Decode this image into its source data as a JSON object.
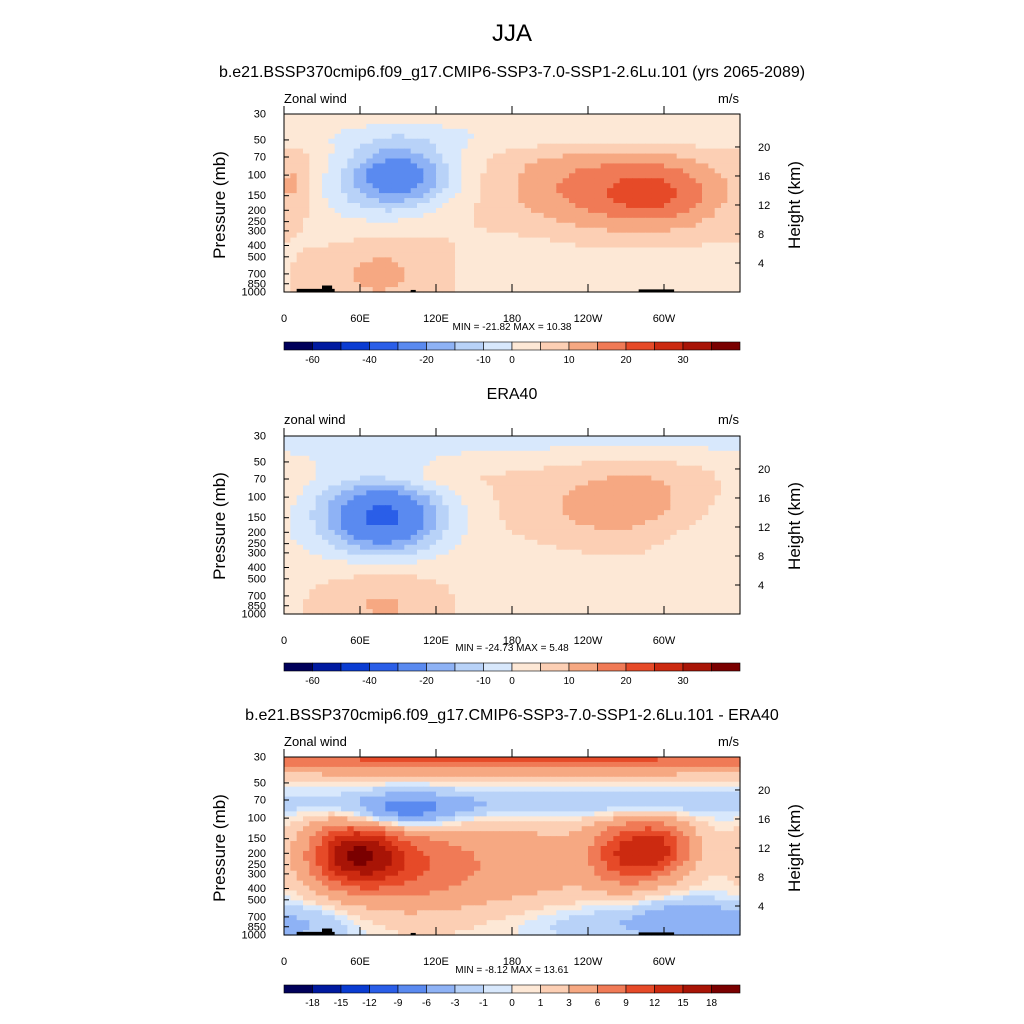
{
  "page": {
    "title": "JJA",
    "subtitle_model": "b.e21.BSSP370cmip6.f09_g17.CMIP6-SSP3-7.0-SSP1-2.6Lu.101 (yrs 2065-2089)",
    "subtitle_obs": "ERA40",
    "subtitle_diff": "b.e21.BSSP370cmip6.f09_g17.CMIP6-SSP3-7.0-SSP1-2.6Lu.101 - ERA40"
  },
  "panels": [
    {
      "left_label": "Zonal wind",
      "right_label": "m/s",
      "minmax": "MIN = -21.82  MAX =  10.38"
    },
    {
      "left_label": "zonal wind",
      "right_label": "m/s",
      "minmax": "MIN = -24.73  MAX =   5.48"
    },
    {
      "left_label": "Zonal wind",
      "right_label": "m/s",
      "minmax": "MIN = -8.12  MAX =  13.61"
    }
  ],
  "axes": {
    "ylabel_left": "Pressure (mb)",
    "ylabel_right": "Height (km)",
    "pressure_ticks": [
      "30",
      "50",
      "70",
      "100",
      "150",
      "200",
      "250",
      "300",
      "400",
      "500",
      "700",
      "850",
      "1000"
    ],
    "height_ticks": [
      "20",
      "16",
      "12",
      "8",
      "4"
    ],
    "lon_ticks": [
      "0",
      "60E",
      "120E",
      "180",
      "120W",
      "60W"
    ]
  },
  "colorbars": {
    "abs_labels": [
      "-60",
      "-40",
      "-20",
      "-10",
      "0",
      "10",
      "20",
      "30"
    ],
    "diff_labels": [
      "-18",
      "-15",
      "-12",
      "-9",
      "-6",
      "-3",
      "-1",
      "0",
      "1",
      "3",
      "6",
      "9",
      "12",
      "15",
      "18"
    ]
  },
  "colors": {
    "palette": [
      "#00005a",
      "#001aa0",
      "#0a3cd2",
      "#2a5ee8",
      "#5a8af0",
      "#8eb2f5",
      "#b8d2f8",
      "#d8e8fc",
      "#fde8d6",
      "#fccfb4",
      "#f6a882",
      "#f07a56",
      "#e64a28",
      "#cc2a10",
      "#a81406",
      "#7a0000"
    ]
  },
  "chart_data": [
    {
      "type": "heatmap",
      "title": "b.e21.BSSP370cmip6.f09_g17.CMIP6-SSP3-7.0-SSP1-2.6Lu.101 (yrs 2065-2089)",
      "variable": "Zonal wind",
      "units": "m/s",
      "x": "longitude 0 to 360",
      "y": "pressure 1000 to 30 mb",
      "min": -21.82,
      "max": 10.38,
      "contour_levels": [
        -60,
        -50,
        -40,
        -30,
        -20,
        -15,
        -10,
        -5,
        0,
        5,
        10,
        15,
        20,
        25,
        30
      ],
      "features": [
        {
          "kind": "min",
          "lon": 90,
          "p": 100,
          "value": -21.8
        },
        {
          "kind": "max",
          "lon": 296,
          "p": 150,
          "value": 10.4
        },
        {
          "kind": "max",
          "lon": 225,
          "p": 120,
          "value": 6
        },
        {
          "kind": "max",
          "lon": 75,
          "p": 700,
          "value": 6
        }
      ]
    },
    {
      "type": "heatmap",
      "title": "ERA40",
      "variable": "zonal wind",
      "units": "m/s",
      "x": "longitude 0 to 360",
      "y": "pressure 1000 to 30 mb",
      "min": -24.73,
      "max": 5.48,
      "contour_levels": [
        -60,
        -50,
        -40,
        -30,
        -20,
        -15,
        -10,
        -5,
        0,
        5,
        10,
        15,
        20,
        25,
        30
      ],
      "features": [
        {
          "kind": "min",
          "lon": 80,
          "p": 150,
          "value": -24.7
        },
        {
          "kind": "max",
          "lon": 250,
          "p": 130,
          "value": 5.5
        },
        {
          "kind": "max",
          "lon": 80,
          "p": 800,
          "value": 5
        }
      ]
    },
    {
      "type": "heatmap",
      "title": "b.e21.BSSP370cmip6.f09_g17.CMIP6-SSP3-7.0-SSP1-2.6Lu.101 - ERA40",
      "variable": "Zonal wind",
      "units": "m/s",
      "x": "longitude 0 to 360",
      "y": "pressure 1000 to 30 mb",
      "min": -8.12,
      "max": 13.61,
      "contour_levels": [
        -18,
        -15,
        -12,
        -9,
        -6,
        -3,
        -1,
        0,
        1,
        3,
        6,
        9,
        12,
        15,
        18
      ],
      "features": [
        {
          "kind": "max",
          "lon": 55,
          "p": 200,
          "value": 13.6
        },
        {
          "kind": "max",
          "lon": 270,
          "p": 200,
          "value": 10
        },
        {
          "kind": "max",
          "lon": 290,
          "p": 180,
          "value": 9
        },
        {
          "kind": "min",
          "lon": 95,
          "p": 90,
          "value": -8.1
        },
        {
          "kind": "band",
          "p": 30,
          "value": 6
        }
      ]
    }
  ]
}
